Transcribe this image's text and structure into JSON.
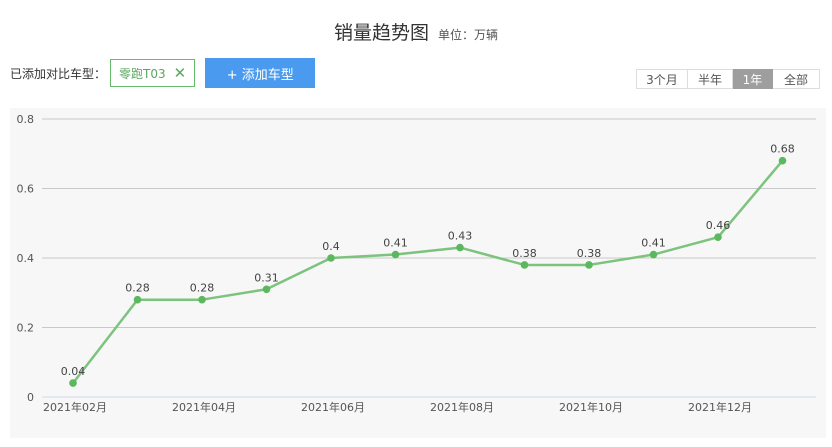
{
  "header": {
    "title": "销量趋势图",
    "unit": "单位：万辆"
  },
  "compare": {
    "label": "已添加对比车型：",
    "tag": "零跑T03",
    "add_button": "+ 添加车型"
  },
  "range": {
    "options": [
      "3个月",
      "半年",
      "1年",
      "全部"
    ],
    "active": "1年"
  },
  "colors": {
    "line": "#7cc37e",
    "point": "#5cb85f",
    "grid": "#c8c8c8",
    "panel": "#f7f7f7",
    "button": "#4a9bf0"
  },
  "chart_data": {
    "type": "line",
    "x": [
      "2021年02月",
      "2021年03月",
      "2021年04月",
      "2021年05月",
      "2021年06月",
      "2021年07月",
      "2021年08月",
      "2021年09月",
      "2021年10月",
      "2021年11月",
      "2021年12月",
      "2022年01月"
    ],
    "x_tick_labels": [
      "2021年02月",
      "2021年04月",
      "2021年06月",
      "2021年08月",
      "2021年10月",
      "2021年12月"
    ],
    "series": [
      {
        "values": [
          0.04,
          0.28,
          0.28,
          0.31,
          0.4,
          0.41,
          0.43,
          0.38,
          0.38,
          0.41,
          0.46,
          0.68
        ]
      }
    ],
    "data_labels": [
      "0.04",
      "0.28",
      "0.28",
      "0.31",
      "0.4",
      "0.41",
      "0.43",
      "0.38",
      "0.38",
      "0.41",
      "0.46",
      "0.68"
    ],
    "y_ticks": [
      "0",
      "0.2",
      "0.4",
      "0.6",
      "0.8"
    ],
    "ylim": [
      0,
      0.8
    ],
    "grid": true,
    "legend": false
  }
}
